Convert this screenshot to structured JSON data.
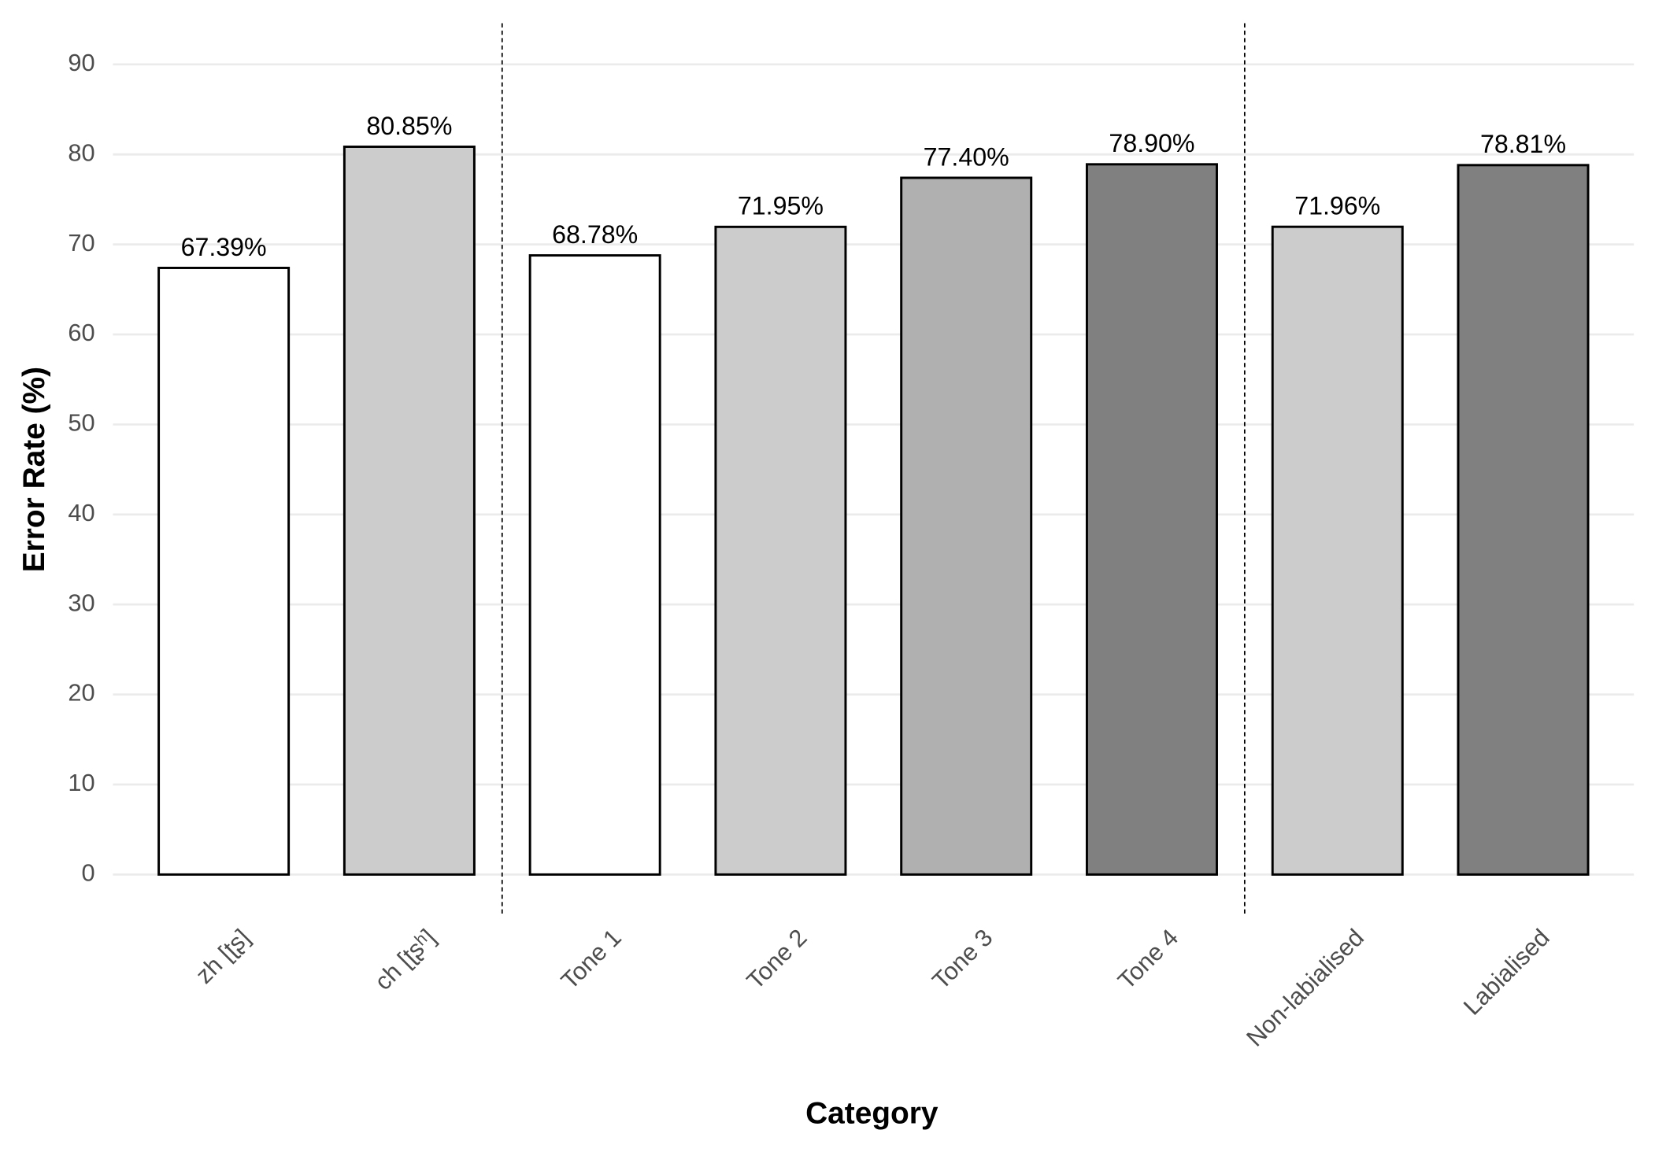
{
  "chart_data": {
    "type": "bar",
    "x_label": "Category",
    "y_label": "Error Rate (%)",
    "categories": [
      "zh [ʈʂ]",
      "ch [ʈʂʰ]",
      "Tone 1",
      "Tone 2",
      "Tone 3",
      "Tone 4",
      "Non-labialised",
      "Labialised"
    ],
    "values": [
      67.39,
      80.85,
      68.78,
      71.95,
      77.4,
      78.9,
      71.96,
      78.81
    ],
    "value_labels": [
      "67.39%",
      "80.85%",
      "68.78%",
      "71.95%",
      "77.40%",
      "78.90%",
      "71.96%",
      "78.81%"
    ],
    "colors": [
      "#ffffff",
      "#cccccc",
      "#ffffff",
      "#cccccc",
      "#b0b0b0",
      "#808080",
      "#cccccc",
      "#808080"
    ],
    "ylim": [
      0,
      90
    ],
    "yticks": [
      0,
      10,
      20,
      30,
      40,
      50,
      60,
      70,
      80,
      90
    ],
    "grid": true
  }
}
